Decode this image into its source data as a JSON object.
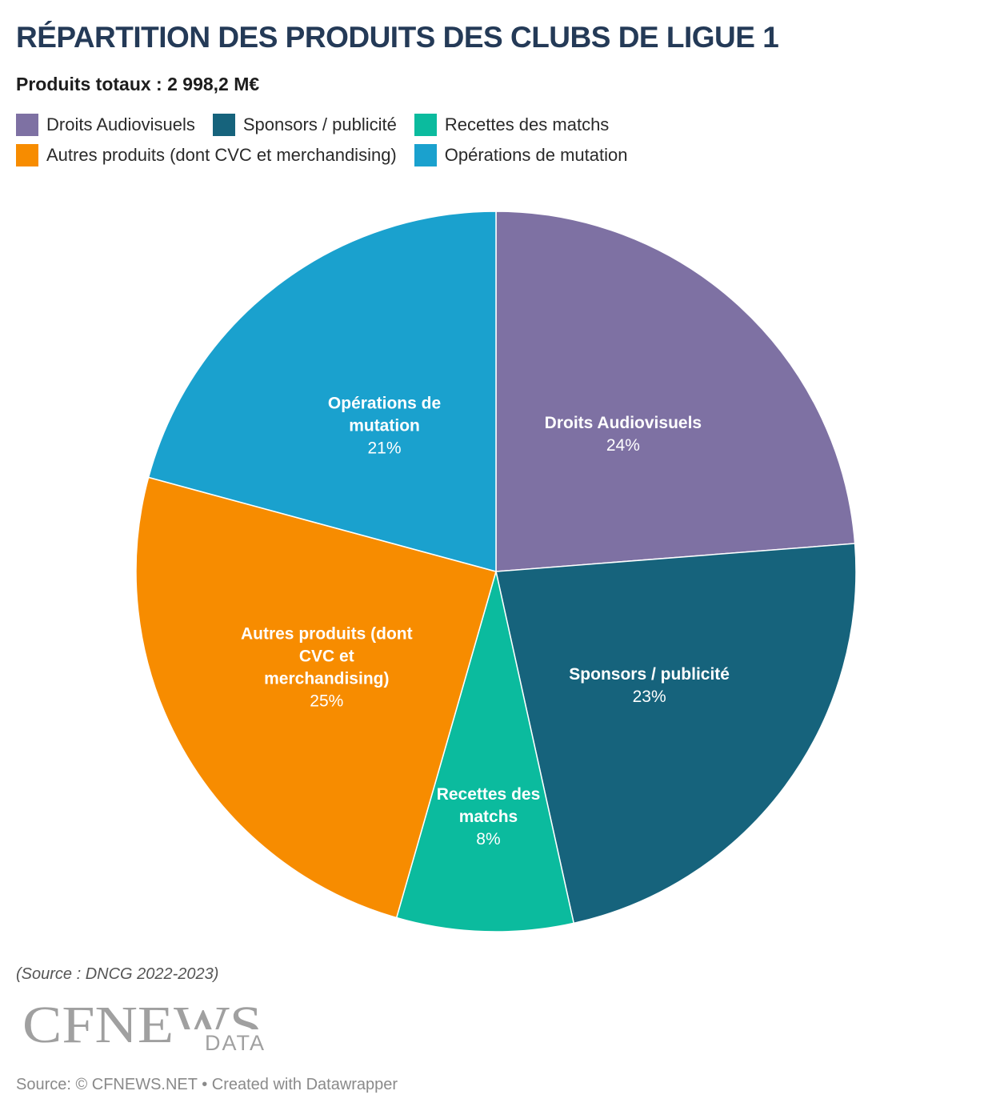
{
  "title": "RÉPARTITION DES PRODUITS DES CLUBS DE LIGUE 1",
  "subtitle": "Produits totaux : 2 998,2 M€",
  "chart_data": {
    "type": "pie",
    "title": "RÉPARTITION DES PRODUITS DES CLUBS DE LIGUE 1",
    "subtitle": "Produits totaux : 2 998,2 M€",
    "legend_placement": "top",
    "slices": [
      {
        "name": "Droits Audiovisuels",
        "label_lines": [
          "Droits Audiovisuels"
        ],
        "value": 24,
        "value_label": "24%",
        "color": "#7e71a3"
      },
      {
        "name": "Sponsors / publicité",
        "label_lines": [
          "Sponsors / publicité"
        ],
        "value": 23,
        "value_label": "23%",
        "color": "#16637c"
      },
      {
        "name": "Recettes des matchs",
        "label_lines": [
          "Recettes des",
          "matchs"
        ],
        "value": 8,
        "value_label": "8%",
        "color": "#0bbb9e"
      },
      {
        "name": "Autres produits (dont CVC et merchandising)",
        "label_lines": [
          "Autres produits (dont",
          "CVC et",
          "merchandising)"
        ],
        "value": 25,
        "value_label": "25%",
        "color": "#f78c00"
      },
      {
        "name": "Opérations de mutation",
        "label_lines": [
          "Opérations de",
          "mutation"
        ],
        "value": 21,
        "value_label": "21%",
        "color": "#1aa1ce"
      }
    ]
  },
  "source": "(Source : DNCG 2022-2023)",
  "logo": {
    "main": "CFNEWS",
    "sub": "DATA"
  },
  "footer": "Source: © CFNEWS.NET • Created with Datawrapper"
}
